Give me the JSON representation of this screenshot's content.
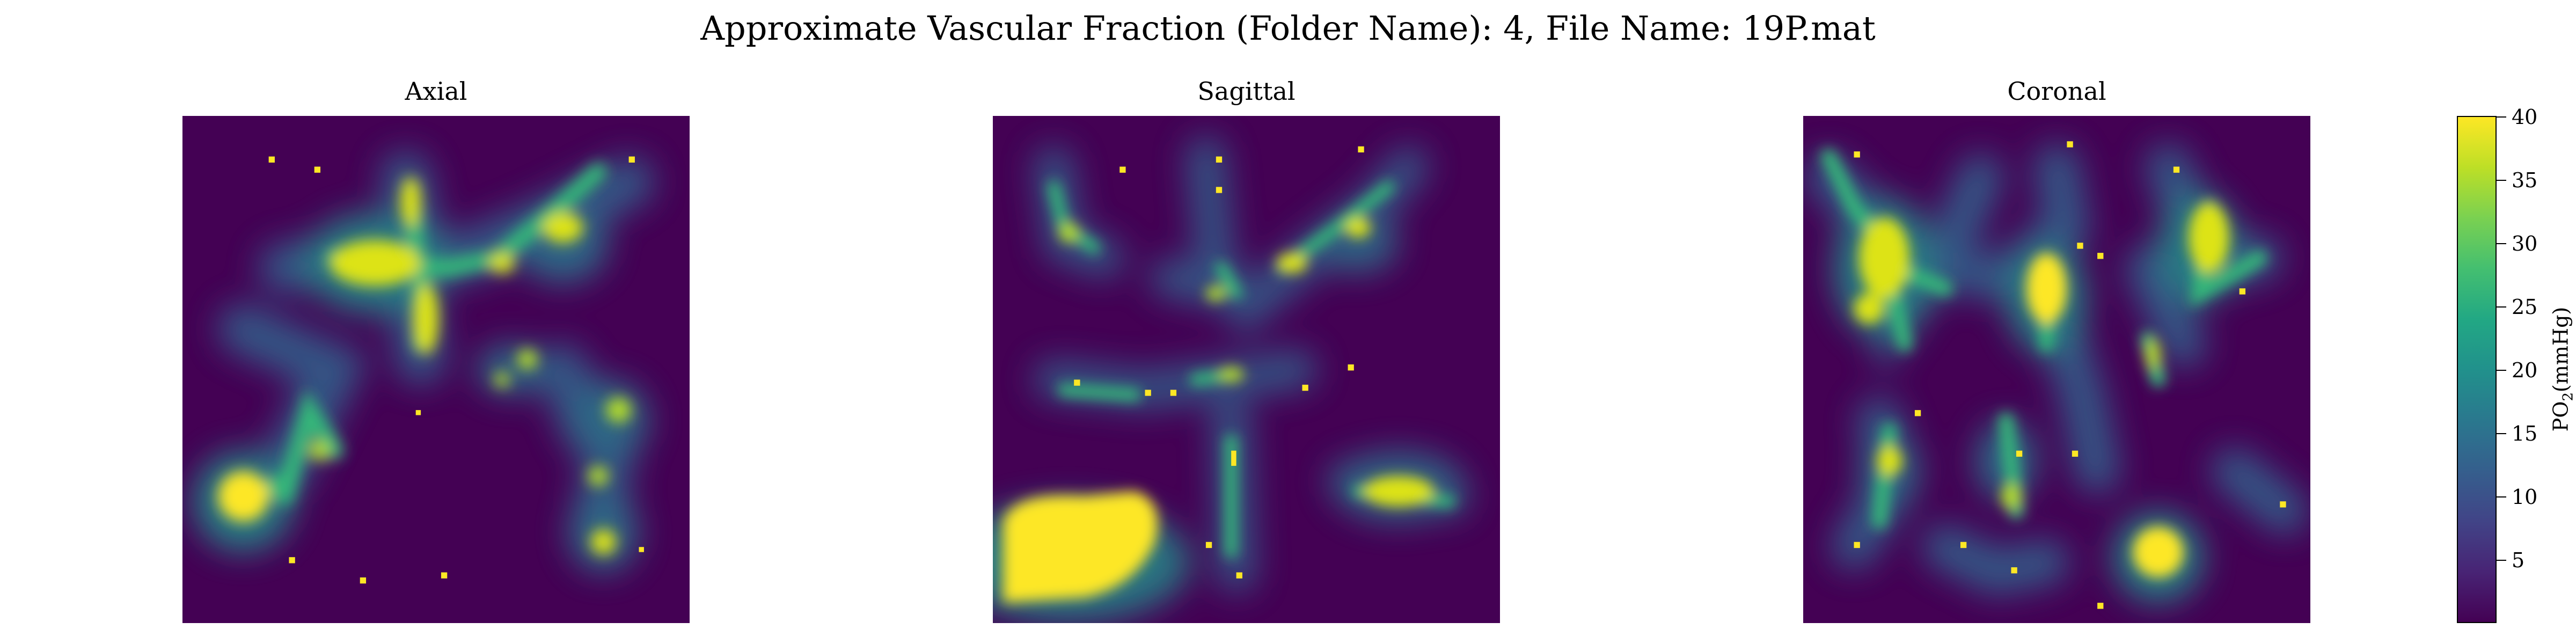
{
  "chart_data": {
    "type": "heatmap",
    "title": "Approximate Vascular Fraction (Folder Name): 4, File Name: 19P.mat",
    "panels": [
      {
        "title": "Axial"
      },
      {
        "title": "Sagittal"
      },
      {
        "title": "Coronal"
      }
    ],
    "colormap": "viridis",
    "colorbar": {
      "label_main": "PO",
      "label_sub": "2",
      "label_unit": "(mmHg)",
      "range": [
        0,
        40
      ],
      "ticks": [
        "5",
        "10",
        "15",
        "20",
        "25",
        "30",
        "35",
        "40"
      ]
    }
  }
}
